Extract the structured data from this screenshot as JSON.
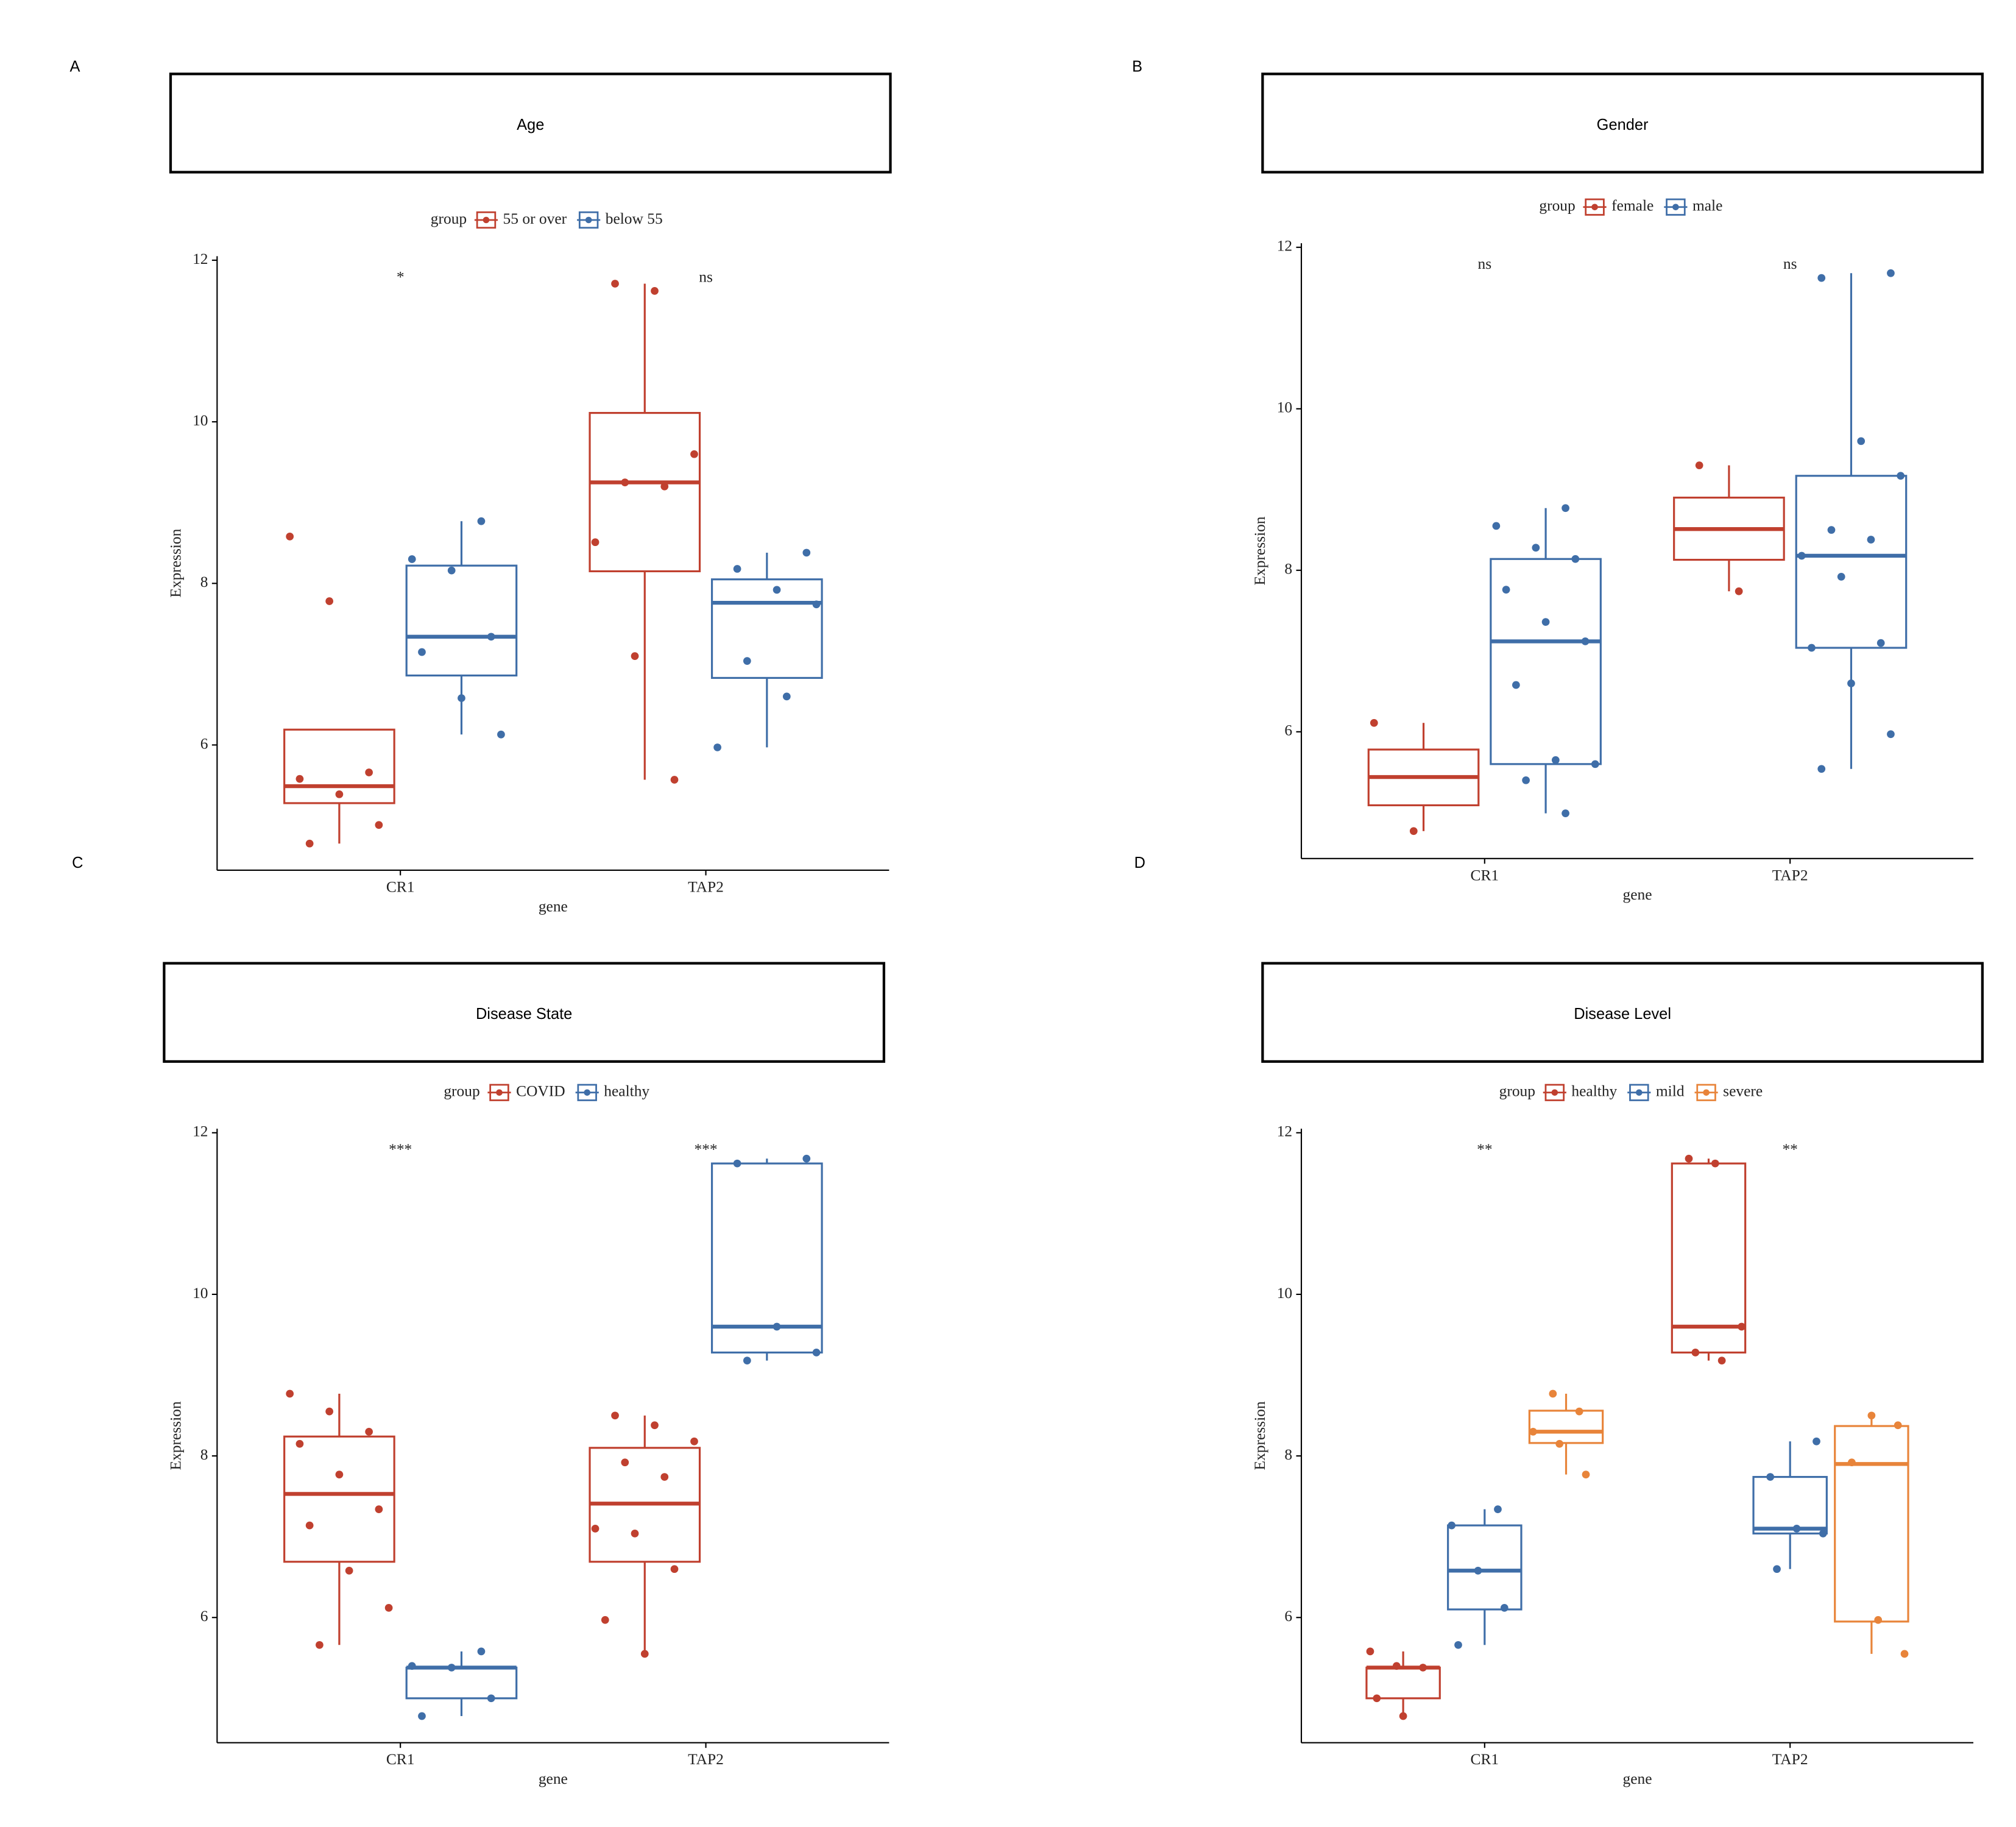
{
  "chart_data": [
    {
      "type": "box",
      "panel": "A",
      "title": "Age",
      "legend_title": "group",
      "x_label": "gene",
      "y_label": "Expression",
      "categories": [
        "CR1",
        "TAP2"
      ],
      "annotations": [
        "*",
        "ns"
      ],
      "ylim": [
        4.45,
        12.05
      ],
      "yticks": [
        6,
        8,
        10,
        12
      ],
      "series": [
        {
          "name": "55 or over",
          "color": "#c0402f",
          "boxes": [
            {
              "min": 4.78,
              "q1": 5.28,
              "median": 5.49,
              "q3": 6.19,
              "max": 6.19,
              "points": [
                8.58,
                7.78,
                5.66,
                5.58,
                5.39,
                5.01,
                4.78
              ]
            },
            {
              "min": 5.57,
              "q1": 8.15,
              "median": 9.25,
              "q3": 10.11,
              "max": 11.71,
              "points": [
                11.71,
                11.62,
                9.6,
                9.25,
                9.2,
                8.51,
                7.1,
                5.57
              ]
            }
          ]
        },
        {
          "name": "below 55",
          "color": "#3f6ea8",
          "boxes": [
            {
              "min": 6.13,
              "q1": 6.86,
              "median": 7.34,
              "q3": 8.22,
              "max": 8.77,
              "points": [
                8.77,
                8.3,
                8.16,
                7.34,
                7.15,
                6.58,
                6.13
              ]
            },
            {
              "min": 5.97,
              "q1": 6.83,
              "median": 7.76,
              "q3": 8.05,
              "max": 8.38,
              "points": [
                8.38,
                8.18,
                7.92,
                7.74,
                7.04,
                6.6,
                5.97
              ]
            }
          ]
        }
      ]
    },
    {
      "type": "box",
      "panel": "B",
      "title": "Gender",
      "legend_title": "group",
      "x_label": "gene",
      "y_label": "Expression",
      "categories": [
        "CR1",
        "TAP2"
      ],
      "annotations": [
        "ns",
        "ns"
      ],
      "ylim": [
        4.43,
        12.05
      ],
      "yticks": [
        6,
        8,
        10,
        12
      ],
      "series": [
        {
          "name": "female",
          "color": "#c0402f",
          "boxes": [
            {
              "min": 4.77,
              "q1": 5.09,
              "median": 5.44,
              "q3": 5.78,
              "max": 6.11,
              "points": [
                6.11,
                4.77
              ]
            },
            {
              "min": 7.74,
              "q1": 8.13,
              "median": 8.51,
              "q3": 8.9,
              "max": 9.3,
              "points": [
                9.3,
                7.74
              ]
            }
          ]
        },
        {
          "name": "male",
          "color": "#3f6ea8",
          "boxes": [
            {
              "min": 4.99,
              "q1": 5.6,
              "median": 7.12,
              "q3": 8.14,
              "max": 8.77,
              "points": [
                8.77,
                8.55,
                8.28,
                8.14,
                7.76,
                7.36,
                7.12,
                6.58,
                5.65,
                5.6,
                5.4,
                4.99
              ]
            },
            {
              "min": 5.54,
              "q1": 7.04,
              "median": 8.18,
              "q3": 9.17,
              "max": 11.68,
              "points": [
                11.68,
                11.62,
                9.6,
                9.17,
                8.5,
                8.38,
                8.18,
                7.92,
                7.1,
                7.04,
                6.6,
                5.97,
                5.54
              ]
            }
          ]
        }
      ]
    },
    {
      "type": "box",
      "panel": "C",
      "title": "Disease State",
      "legend_title": "group",
      "x_label": "gene",
      "y_label": "Expression",
      "categories": [
        "CR1",
        "TAP2"
      ],
      "annotations": [
        "***",
        "***"
      ],
      "ylim": [
        4.45,
        12.05
      ],
      "yticks": [
        6,
        8,
        10,
        12
      ],
      "series": [
        {
          "name": "COVID",
          "color": "#c0402f",
          "boxes": [
            {
              "min": 5.66,
              "q1": 6.69,
              "median": 7.53,
              "q3": 8.24,
              "max": 8.77,
              "points": [
                8.77,
                8.55,
                8.3,
                8.15,
                7.77,
                7.34,
                7.14,
                6.58,
                6.12,
                5.66
              ]
            },
            {
              "min": 5.55,
              "q1": 6.69,
              "median": 7.41,
              "q3": 8.1,
              "max": 8.5,
              "points": [
                8.5,
                8.38,
                8.18,
                7.92,
                7.74,
                7.1,
                7.04,
                6.6,
                5.97,
                5.55
              ]
            }
          ]
        },
        {
          "name": "healthy",
          "color": "#3f6ea8",
          "boxes": [
            {
              "min": 4.78,
              "q1": 5.0,
              "median": 5.38,
              "q3": 5.38,
              "max": 5.58,
              "points": [
                5.58,
                5.4,
                5.38,
                5.0,
                4.78
              ]
            },
            {
              "min": 9.18,
              "q1": 9.28,
              "median": 9.6,
              "q3": 11.62,
              "max": 11.68,
              "points": [
                11.68,
                11.62,
                9.6,
                9.28,
                9.18
              ]
            }
          ]
        }
      ]
    },
    {
      "type": "box",
      "panel": "D",
      "title": "Disease Level",
      "legend_title": "group",
      "x_label": "gene",
      "y_label": "Expression",
      "categories": [
        "CR1",
        "TAP2"
      ],
      "annotations": [
        "**",
        "**"
      ],
      "ylim": [
        4.45,
        12.05
      ],
      "yticks": [
        6,
        8,
        10,
        12
      ],
      "series": [
        {
          "name": "healthy",
          "color": "#c0402f",
          "boxes": [
            {
              "min": 4.78,
              "q1": 5.0,
              "median": 5.38,
              "q3": 5.38,
              "max": 5.58,
              "points": [
                5.58,
                5.4,
                5.38,
                5.0,
                4.78
              ]
            },
            {
              "min": 9.18,
              "q1": 9.28,
              "median": 9.6,
              "q3": 11.62,
              "max": 11.68,
              "points": [
                11.68,
                11.62,
                9.6,
                9.28,
                9.18
              ]
            }
          ]
        },
        {
          "name": "mild",
          "color": "#3f6ea8",
          "boxes": [
            {
              "min": 5.66,
              "q1": 6.1,
              "median": 6.58,
              "q3": 7.14,
              "max": 7.34,
              "points": [
                7.34,
                7.14,
                6.58,
                6.12,
                5.66
              ]
            },
            {
              "min": 6.6,
              "q1": 7.04,
              "median": 7.1,
              "q3": 7.74,
              "max": 8.18,
              "points": [
                8.18,
                7.74,
                7.1,
                7.04,
                6.6
              ]
            }
          ]
        },
        {
          "name": "severe",
          "color": "#e8843a",
          "boxes": [
            {
              "min": 7.77,
              "q1": 8.16,
              "median": 8.3,
              "q3": 8.56,
              "max": 8.77,
              "points": [
                8.77,
                8.55,
                8.3,
                8.15,
                7.77
              ]
            },
            {
              "min": 5.55,
              "q1": 5.95,
              "median": 7.9,
              "q3": 8.37,
              "max": 8.5,
              "points": [
                8.5,
                8.38,
                7.92,
                5.97,
                5.55
              ]
            }
          ]
        }
      ]
    }
  ]
}
